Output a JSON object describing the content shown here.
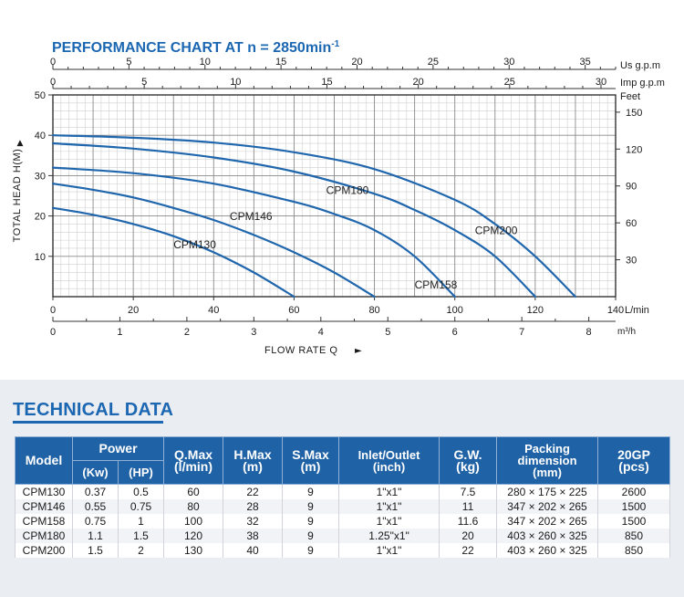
{
  "chart_data": {
    "type": "line",
    "title": "PERFORMANCE CHART AT n = 2850min",
    "title_superscript": "-1",
    "ylabel": "TOTAL HEAD H(M)",
    "xlabel": "FLOW RATE Q",
    "xlabel_arrow": "►",
    "x_lmin": {
      "label": "L/min",
      "range": [
        0,
        140
      ],
      "ticks": [
        0,
        20,
        40,
        60,
        80,
        100,
        120,
        140
      ]
    },
    "x_m3h": {
      "label": "m³/h",
      "range": [
        0,
        8.4
      ],
      "ticks": [
        0,
        1,
        2,
        3,
        4,
        5,
        6,
        7,
        8
      ]
    },
    "x_usgpm": {
      "label": "Us g.p.m",
      "range": [
        0,
        37
      ],
      "ticks": [
        0,
        5,
        10,
        15,
        20,
        25,
        30,
        35
      ]
    },
    "x_impgpm": {
      "label": "Imp g.p.m",
      "range": [
        0,
        30.8
      ],
      "ticks": [
        0,
        5,
        10,
        15,
        20,
        25,
        30
      ]
    },
    "y_m": {
      "range": [
        0,
        50
      ],
      "ticks": [
        10,
        20,
        30,
        40,
        50
      ]
    },
    "y_feet": {
      "label": "Feet",
      "range": [
        0,
        164
      ],
      "ticks": [
        30,
        60,
        90,
        120,
        150
      ]
    },
    "grid": true,
    "series": [
      {
        "name": "CPM130",
        "x": [
          0,
          10,
          20,
          30,
          40,
          50,
          60
        ],
        "y": [
          22,
          20.3,
          18,
          15,
          11,
          6,
          0
        ],
        "label_at": [
          30,
          12
        ]
      },
      {
        "name": "CPM146",
        "x": [
          0,
          10,
          20,
          30,
          40,
          50,
          60,
          70,
          80
        ],
        "y": [
          28,
          26.5,
          24.6,
          22,
          19,
          15.3,
          11,
          6,
          0
        ],
        "label_at": [
          44,
          19
        ]
      },
      {
        "name": "CPM158",
        "x": [
          0,
          20,
          40,
          60,
          70,
          80,
          90,
          100
        ],
        "y": [
          32,
          30.6,
          28,
          23.5,
          20.5,
          16.5,
          10,
          0
        ],
        "label_at": [
          90,
          2
        ]
      },
      {
        "name": "CPM180",
        "x": [
          0,
          20,
          40,
          60,
          80,
          90,
          100,
          110,
          120
        ],
        "y": [
          38,
          36.7,
          34.5,
          31,
          25.5,
          21.5,
          16.5,
          10,
          0
        ],
        "label_at": [
          68,
          25.5
        ]
      },
      {
        "name": "CPM200",
        "x": [
          0,
          20,
          40,
          60,
          80,
          100,
          110,
          120,
          130
        ],
        "y": [
          40,
          39.4,
          38.2,
          35.8,
          31.6,
          24,
          18,
          10,
          0
        ],
        "label_at": [
          105,
          15.5
        ]
      }
    ]
  },
  "tech": {
    "title": "TECHNICAL DATA",
    "headers": {
      "model": "Model",
      "power": "Power",
      "kw": "(Kw)",
      "hp": "(HP)",
      "qmax_1": "Q.Max",
      "qmax_2": "(l/min)",
      "hmax_1": "H.Max",
      "hmax_2": "(m)",
      "smax_1": "S.Max",
      "smax_2": "(m)",
      "inlet_1": "Inlet/Outlet",
      "inlet_2": "(inch)",
      "gw_1": "G.W.",
      "gw_2": "(kg)",
      "pack_1": "Packing",
      "pack_2": "dimension",
      "pack_3": "(mm)",
      "gp_1": "20GP",
      "gp_2": "(pcs)"
    },
    "rows": [
      {
        "model": "CPM130",
        "kw": "0.37",
        "hp": "0.5",
        "qmax": "60",
        "hmax": "22",
        "smax": "9",
        "inlet": "1\"x1\"",
        "gw": "7.5",
        "pack": "280 × 175 × 225",
        "gp": "2600"
      },
      {
        "model": "CPM146",
        "kw": "0.55",
        "hp": "0.75",
        "qmax": "80",
        "hmax": "28",
        "smax": "9",
        "inlet": "1\"x1\"",
        "gw": "11",
        "pack": "347 × 202 × 265",
        "gp": "1500"
      },
      {
        "model": "CPM158",
        "kw": "0.75",
        "hp": "1",
        "qmax": "100",
        "hmax": "32",
        "smax": "9",
        "inlet": "1\"x1\"",
        "gw": "11.6",
        "pack": "347 × 202 × 265",
        "gp": "1500"
      },
      {
        "model": "CPM180",
        "kw": "1.1",
        "hp": "1.5",
        "qmax": "120",
        "hmax": "38",
        "smax": "9",
        "inlet": "1.25\"x1\"",
        "gw": "20",
        "pack": "403 × 260 × 325",
        "gp": "850"
      },
      {
        "model": "CPM200",
        "kw": "1.5",
        "hp": "2",
        "qmax": "130",
        "hmax": "40",
        "smax": "9",
        "inlet": "1\"x1\"",
        "gw": "22",
        "pack": "403 × 260 × 325",
        "gp": "850"
      }
    ]
  },
  "colors": {
    "accent": "#1c67b2",
    "curve": "#1f66ad",
    "header_bg": "#1f62a6",
    "grid_major": "#8a8a8a",
    "grid_minor": "#cfcfcf",
    "section_bg": "#eaedf2"
  }
}
